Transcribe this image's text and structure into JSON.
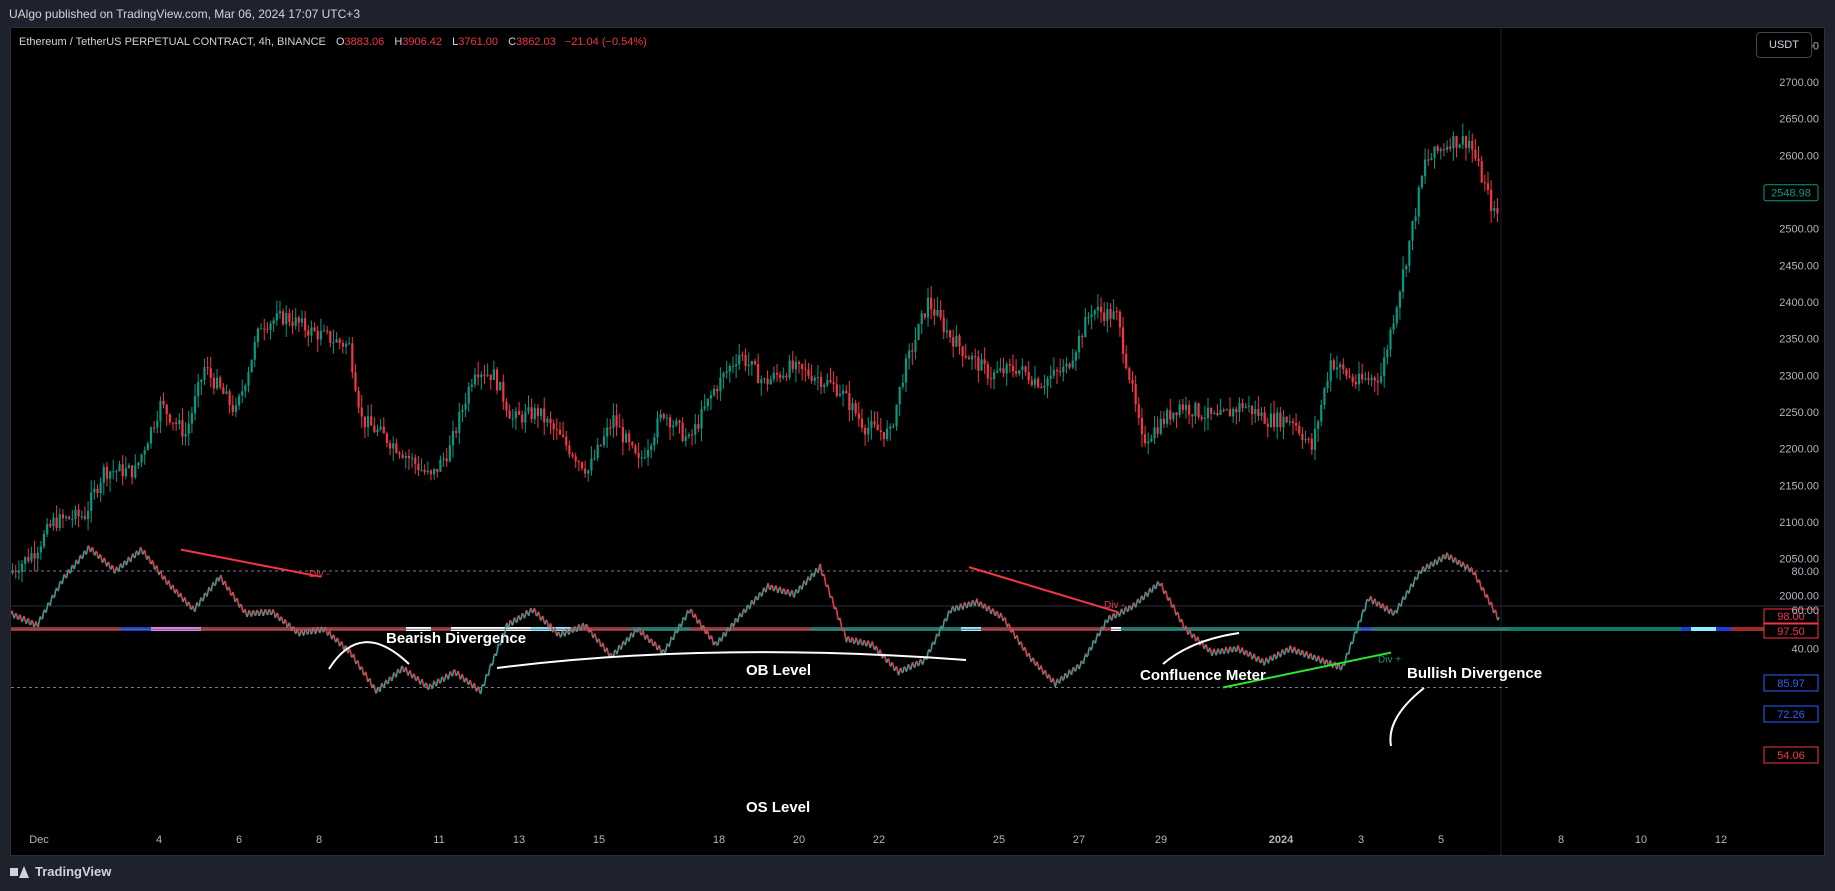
{
  "header": {
    "published": "UAlgo published on TradingView.com, Mar 06, 2024 17:07 UTC+3"
  },
  "legend": {
    "symbol": "Ethereum / TetherUS PERPETUAL CONTRACT, 4h, BINANCE",
    "o_label": "O",
    "o_value": "3883.06",
    "h_label": "H",
    "h_value": "3906.42",
    "l_label": "L",
    "l_value": "3761.00",
    "c_label": "C",
    "c_value": "3862.03",
    "change": "−21.04 (−0.54%)"
  },
  "currency_button": "USDT",
  "price_badges": {
    "last": "2548.98",
    "rsi_fast": "85.97",
    "rsi_slow": "72.26",
    "rsi_cur": "54.06",
    "meter_top": "98.00",
    "meter_bottom": "97.50"
  },
  "annotations": {
    "bearish": "Bearish Divergence",
    "ob": "OB Level",
    "confluence": "Confluence Meter",
    "bullish": "Bullish Divergence",
    "os": "OS Level",
    "div": "Div -",
    "div_bull": "Div +"
  },
  "footer": {
    "brand": "TradingView"
  },
  "colors": {
    "up": "#089981",
    "down": "#f23645",
    "bg": "#000000",
    "bull_line": "#2ee830"
  },
  "chart_data": [
    {
      "type": "candlestick",
      "title": "",
      "y_ticks": [
        2000,
        2050,
        2100,
        2150,
        2200,
        2250,
        2300,
        2350,
        2400,
        2450,
        2500,
        2550,
        2600,
        2650,
        2700,
        2750
      ],
      "y_tick_labels": [
        "2000.00",
        "2050.00",
        "2100.00",
        "2150.00",
        "2200.00",
        "2250.00",
        "2300.00",
        "2350.00",
        "2400.00",
        "2450.00",
        "2500.00",
        "2600.00",
        "2650.00",
        "2700.00",
        "2750.00"
      ],
      "ylim": [
        1950,
        2760
      ],
      "x_tick_labels": [
        "Dec",
        "4",
        "6",
        "8",
        "11",
        "13",
        "15",
        "18",
        "20",
        "22",
        "25",
        "27",
        "29",
        "2024",
        "3",
        "5",
        "8",
        "10",
        "12"
      ],
      "series": [
        {
          "anchors": [
            [
              0,
              2030
            ],
            [
              8,
              2060
            ],
            [
              14,
              2100
            ],
            [
              24,
              2110
            ],
            [
              30,
              2170
            ],
            [
              40,
              2170
            ],
            [
              48,
              2260
            ],
            [
              56,
              2220
            ],
            [
              62,
              2310
            ],
            [
              72,
              2250
            ],
            [
              80,
              2370
            ],
            [
              88,
              2380
            ],
            [
              96,
              2360
            ],
            [
              108,
              2340
            ],
            [
              112,
              2240
            ],
            [
              124,
              2200
            ],
            [
              134,
              2160
            ],
            [
              140,
              2200
            ],
            [
              148,
              2310
            ],
            [
              154,
              2300
            ],
            [
              160,
              2240
            ],
            [
              168,
              2250
            ],
            [
              176,
              2210
            ],
            [
              184,
              2170
            ],
            [
              192,
              2240
            ],
            [
              200,
              2180
            ],
            [
              208,
              2250
            ],
            [
              216,
              2210
            ],
            [
              224,
              2280
            ],
            [
              232,
              2330
            ],
            [
              240,
              2290
            ],
            [
              248,
              2310
            ],
            [
              256,
              2300
            ],
            [
              264,
              2280
            ],
            [
              272,
              2230
            ],
            [
              280,
              2220
            ],
            [
              284,
              2300
            ],
            [
              292,
              2400
            ],
            [
              298,
              2360
            ],
            [
              304,
              2330
            ],
            [
              312,
              2300
            ],
            [
              320,
              2310
            ],
            [
              328,
              2290
            ],
            [
              336,
              2310
            ],
            [
              344,
              2390
            ],
            [
              352,
              2380
            ],
            [
              356,
              2300
            ],
            [
              360,
              2210
            ],
            [
              372,
              2260
            ],
            [
              384,
              2240
            ],
            [
              392,
              2260
            ],
            [
              400,
              2240
            ],
            [
              408,
              2240
            ],
            [
              414,
              2200
            ],
            [
              420,
              2320
            ],
            [
              428,
              2290
            ],
            [
              436,
              2300
            ],
            [
              444,
              2460
            ],
            [
              450,
              2590
            ],
            [
              458,
              2620
            ],
            [
              464,
              2620
            ],
            [
              472,
              2520
            ]
          ]
        }
      ]
    },
    {
      "type": "line",
      "title": "",
      "y_ticks": [
        20,
        40,
        60,
        80
      ],
      "y_tick_labels": [
        "20.00",
        "40.00",
        "60.00",
        "80.00"
      ],
      "ylim": [
        10,
        100
      ],
      "levels": {
        "ob": 80,
        "mid": 50,
        "os": 20
      },
      "series": [
        {
          "anchors": [
            [
              0,
              58
            ],
            [
              8,
              52
            ],
            [
              16,
              76
            ],
            [
              24,
              92
            ],
            [
              32,
              80
            ],
            [
              40,
              91
            ],
            [
              48,
              74
            ],
            [
              56,
              60
            ],
            [
              64,
              77
            ],
            [
              72,
              58
            ],
            [
              80,
              59
            ],
            [
              88,
              48
            ],
            [
              96,
              50
            ],
            [
              104,
              38
            ],
            [
              112,
              18
            ],
            [
              120,
              30
            ],
            [
              128,
              20
            ],
            [
              136,
              28
            ],
            [
              144,
              18
            ],
            [
              152,
              52
            ],
            [
              160,
              60
            ],
            [
              168,
              47
            ],
            [
              176,
              52
            ],
            [
              184,
              36
            ],
            [
              192,
              50
            ],
            [
              200,
              38
            ],
            [
              208,
              60
            ],
            [
              216,
              42
            ],
            [
              224,
              58
            ],
            [
              232,
              72
            ],
            [
              240,
              68
            ],
            [
              248,
              82
            ],
            [
              256,
              45
            ],
            [
              264,
              42
            ],
            [
              272,
              28
            ],
            [
              280,
              34
            ],
            [
              288,
              60
            ],
            [
              296,
              64
            ],
            [
              304,
              56
            ],
            [
              312,
              36
            ],
            [
              320,
              22
            ],
            [
              328,
              32
            ],
            [
              336,
              55
            ],
            [
              344,
              62
            ],
            [
              352,
              74
            ],
            [
              360,
              50
            ],
            [
              368,
              38
            ],
            [
              376,
              40
            ],
            [
              384,
              33
            ],
            [
              392,
              40
            ],
            [
              400,
              35
            ],
            [
              408,
              30
            ],
            [
              416,
              66
            ],
            [
              424,
              58
            ],
            [
              432,
              80
            ],
            [
              440,
              88
            ],
            [
              448,
              80
            ],
            [
              456,
              55
            ]
          ]
        }
      ]
    }
  ]
}
